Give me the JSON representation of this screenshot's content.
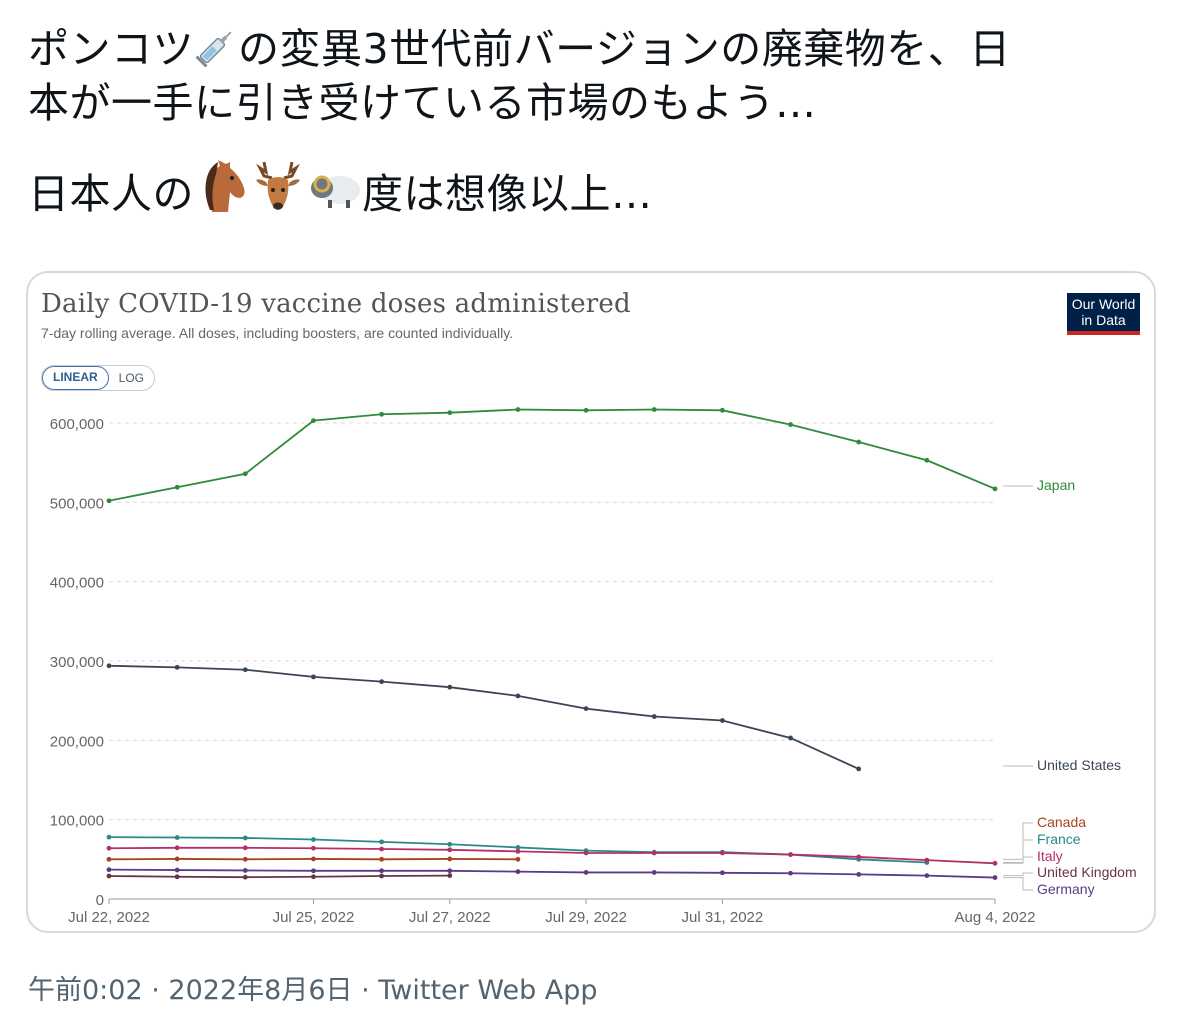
{
  "tweet": {
    "line1": "ポンコツ",
    "line1b": "の変異3世代前バージョンの廃棄物を、日",
    "line2": "本が一手に引き受けている市場のもよう…",
    "line3": "日本人の",
    "line3b": "度は想像以上…",
    "emoji": [
      "syringe-icon",
      "horse-icon",
      "deer-icon",
      "sheep-icon"
    ]
  },
  "card": {
    "logo_line1": "Our World",
    "logo_line2": "in Data",
    "scale_options": [
      "LINEAR",
      "LOG"
    ],
    "selected_scale": "LINEAR"
  },
  "chart_data": {
    "type": "line",
    "title": "Daily COVID-19 vaccine doses administered",
    "subtitle": "7-day rolling average. All doses, including boosters, are counted individually.",
    "x_dates": [
      "Jul 22, 2022",
      "Jul 23, 2022",
      "Jul 24, 2022",
      "Jul 25, 2022",
      "Jul 26, 2022",
      "Jul 27, 2022",
      "Jul 28, 2022",
      "Jul 29, 2022",
      "Jul 30, 2022",
      "Jul 31, 2022",
      "Aug 1, 2022",
      "Aug 2, 2022",
      "Aug 3, 2022",
      "Aug 4, 2022"
    ],
    "x_tick_labels": [
      "Jul 22, 2022",
      "Jul 25, 2022",
      "Jul 27, 2022",
      "Jul 29, 2022",
      "Jul 31, 2022",
      "Aug 4, 2022"
    ],
    "y_ticks": [
      "0",
      "100,000",
      "200,000",
      "300,000",
      "400,000",
      "500,000",
      "600,000"
    ],
    "ylim": [
      0,
      600000
    ],
    "grid": true,
    "series": [
      {
        "name": "Japan",
        "color": "#2e8b3a",
        "values": [
          502000,
          519000,
          536000,
          603000,
          611000,
          613000,
          617000,
          616000,
          617000,
          616000,
          598000,
          576000,
          553000,
          517000
        ]
      },
      {
        "name": "United States",
        "color": "#3a4555",
        "values": [
          294000,
          292000,
          289000,
          280000,
          274000,
          267000,
          256000,
          240000,
          230000,
          225000,
          203000,
          164000,
          null,
          null
        ]
      },
      {
        "name": "Canada",
        "color": "#a8421e",
        "values": [
          50000,
          50500,
          50000,
          50500,
          50000,
          50500,
          50000,
          null,
          null,
          null,
          null,
          null,
          null,
          null
        ]
      },
      {
        "name": "France",
        "color": "#2a8a8a",
        "values": [
          78000,
          77500,
          77000,
          75000,
          72000,
          69000,
          65000,
          61000,
          59000,
          59000,
          56000,
          50000,
          46000,
          null
        ]
      },
      {
        "name": "Italy",
        "color": "#b3306a",
        "values": [
          64000,
          64500,
          64500,
          64000,
          63000,
          62000,
          60000,
          58000,
          58000,
          58000,
          56000,
          53000,
          49000,
          45000
        ]
      },
      {
        "name": "United Kingdom",
        "color": "#6a3347",
        "values": [
          29000,
          28000,
          27500,
          28000,
          29000,
          29500,
          null,
          null,
          null,
          null,
          null,
          null,
          null,
          null
        ]
      },
      {
        "name": "Germany",
        "color": "#5a3c86",
        "values": [
          37000,
          36500,
          36000,
          35500,
          35500,
          35500,
          34500,
          33500,
          33500,
          33000,
          32500,
          31000,
          29500,
          27000
        ]
      }
    ]
  },
  "footer": {
    "time": "午前0:02",
    "sep": "·",
    "date": "2022年8月6日",
    "app": "Twitter Web App"
  }
}
